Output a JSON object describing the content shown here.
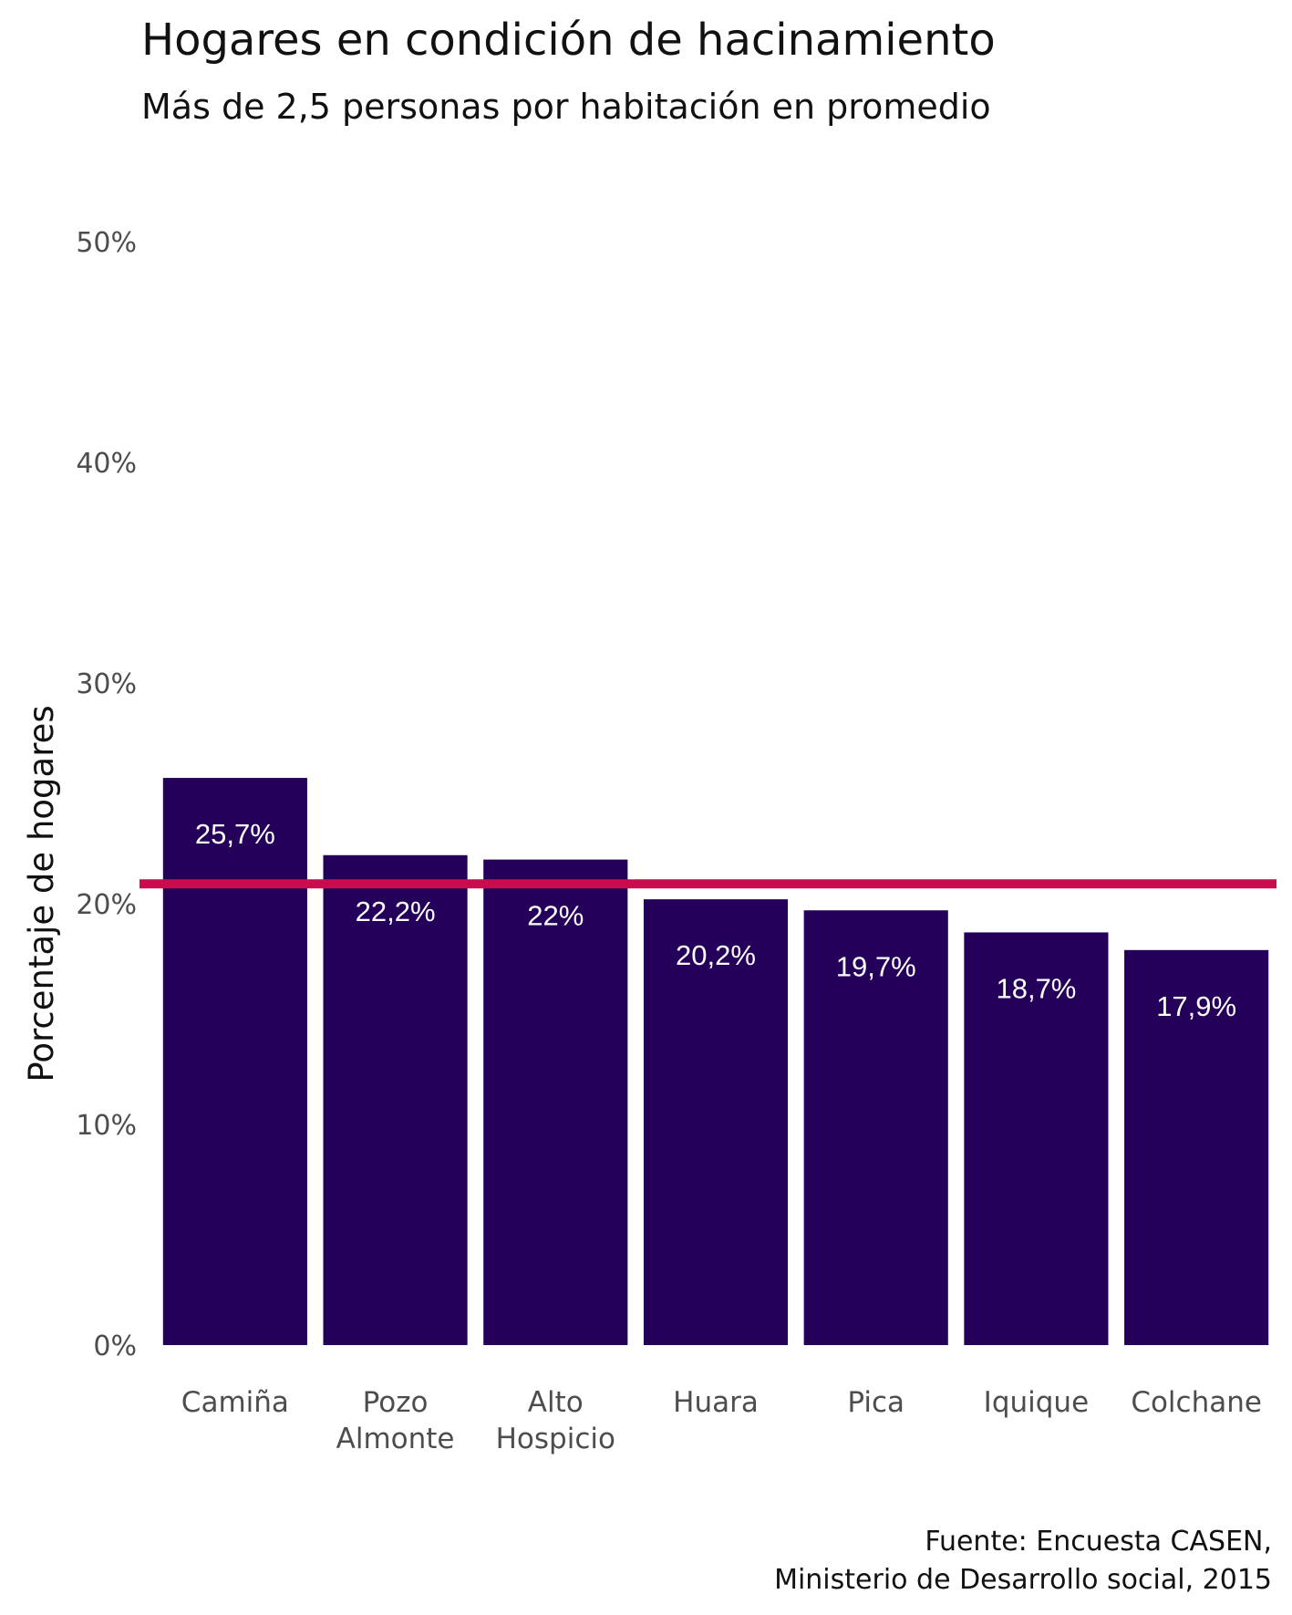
{
  "chart_data": {
    "type": "bar",
    "title": "Hogares en condición de hacinamiento",
    "subtitle": "Más de 2,5 personas por habitación en promedio",
    "ylabel": "Porcentaje de hogares",
    "xlabel": "",
    "ylim": [
      0,
      50
    ],
    "y_ticks": [
      "0%",
      "10%",
      "20%",
      "30%",
      "40%",
      "50%"
    ],
    "y_tick_values": [
      0,
      10,
      20,
      30,
      40,
      50
    ],
    "categories": [
      [
        "Camiña"
      ],
      [
        "Pozo",
        "Almonte"
      ],
      [
        "Alto",
        "Hospicio"
      ],
      [
        "Huara"
      ],
      [
        "Pica"
      ],
      [
        "Iquique"
      ],
      [
        "Colchane"
      ]
    ],
    "values": [
      25.7,
      22.2,
      22,
      20.2,
      19.7,
      18.7,
      17.9
    ],
    "value_labels": [
      "25,7%",
      "22,2%",
      "22%",
      "20,2%",
      "19,7%",
      "18,7%",
      "17,9%"
    ],
    "reference_line": {
      "y": 20.9
    },
    "grid": false,
    "colors": {
      "bar": "#24005a",
      "reference_line": "#cc0a4e",
      "data_label": "#ffffff"
    },
    "caption": [
      "Fuente: Encuesta CASEN,",
      "Ministerio de Desarrollo social, 2015"
    ]
  }
}
